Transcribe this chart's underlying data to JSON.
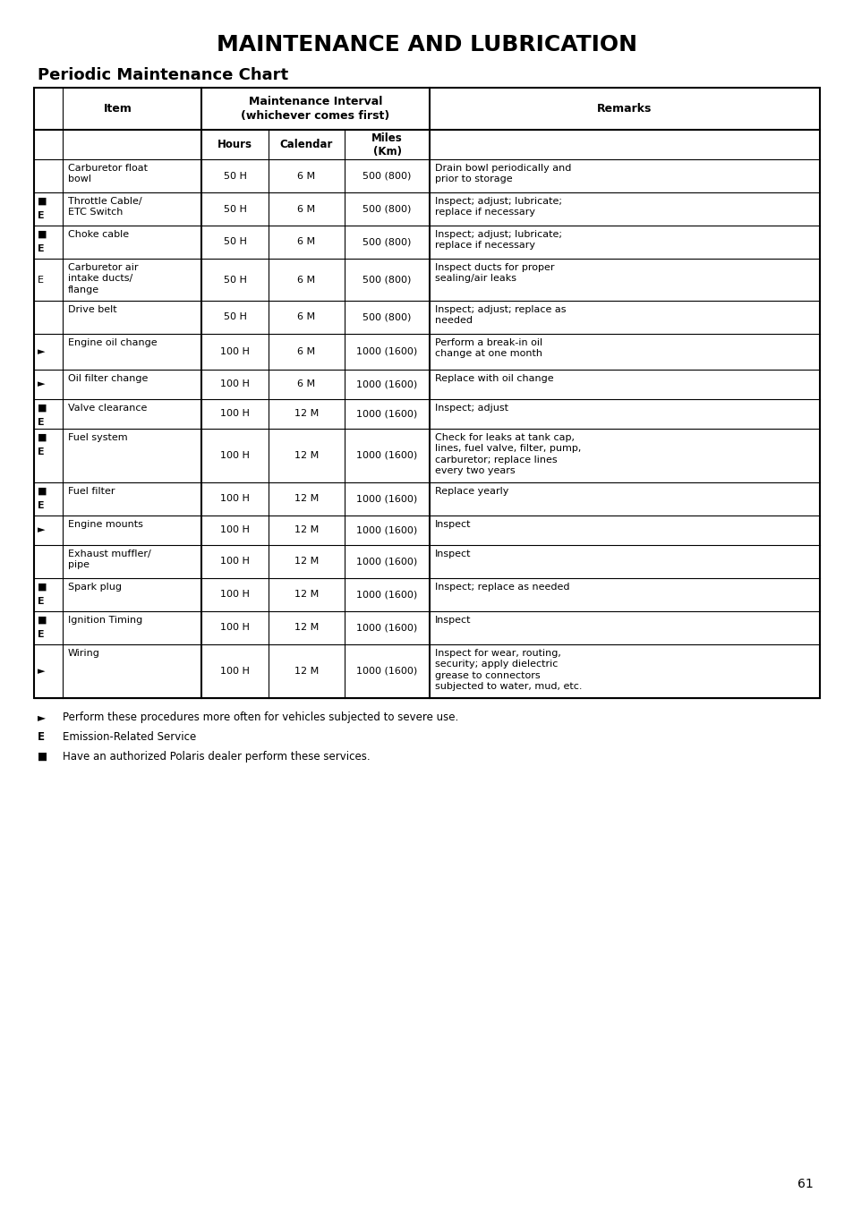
{
  "title": "MAINTENANCE AND LUBRICATION",
  "subtitle": "Periodic Maintenance Chart",
  "page_number": "61",
  "rows": [
    {
      "symbol": "",
      "symbol2": "",
      "item": "Carburetor float\nbowl",
      "hours": "50 H",
      "calendar": "6 M",
      "miles": "500 (800)",
      "remarks": "Drain bowl periodically and\nprior to storage"
    },
    {
      "symbol": "■",
      "symbol2": "E",
      "item": "Throttle Cable/\nETC Switch",
      "hours": "50 H",
      "calendar": "6 M",
      "miles": "500 (800)",
      "remarks": "Inspect; adjust; lubricate;\nreplace if necessary"
    },
    {
      "symbol": "■",
      "symbol2": "E",
      "item": "Choke cable",
      "hours": "50 H",
      "calendar": "6 M",
      "miles": "500 (800)",
      "remarks": "Inspect; adjust; lubricate;\nreplace if necessary"
    },
    {
      "symbol": "E",
      "symbol2": "",
      "item": "Carburetor air\nintake ducts/\nflange",
      "hours": "50 H",
      "calendar": "6 M",
      "miles": "500 (800)",
      "remarks": "Inspect ducts for proper\nsealing/air leaks"
    },
    {
      "symbol": "",
      "symbol2": "",
      "item": "Drive belt",
      "hours": "50 H",
      "calendar": "6 M",
      "miles": "500 (800)",
      "remarks": "Inspect; adjust; replace as\nneeded"
    },
    {
      "symbol": "►",
      "symbol2": "",
      "item": "Engine oil change",
      "hours": "100 H",
      "calendar": "6 M",
      "miles": "1000 (1600)",
      "remarks": "Perform a break-in oil\nchange at one month"
    },
    {
      "symbol": "►",
      "symbol2": "",
      "item": "Oil filter change",
      "hours": "100 H",
      "calendar": "6 M",
      "miles": "1000 (1600)",
      "remarks": "Replace with oil change"
    },
    {
      "symbol": "■",
      "symbol2": "E",
      "item": "Valve clearance",
      "hours": "100 H",
      "calendar": "12 M",
      "miles": "1000 (1600)",
      "remarks": "Inspect; adjust"
    },
    {
      "symbol": "■",
      "symbol2": "E",
      "item": "Fuel system",
      "hours": "100 H",
      "calendar": "12 M",
      "miles": "1000 (1600)",
      "remarks": "Check for leaks at tank cap,\nlines, fuel valve, filter, pump,\ncarburetor; replace lines\nevery two years"
    },
    {
      "symbol": "■",
      "symbol2": "E",
      "item": "Fuel filter",
      "hours": "100 H",
      "calendar": "12 M",
      "miles": "1000 (1600)",
      "remarks": "Replace yearly"
    },
    {
      "symbol": "►",
      "symbol2": "",
      "item": "Engine mounts",
      "hours": "100 H",
      "calendar": "12 M",
      "miles": "1000 (1600)",
      "remarks": "Inspect"
    },
    {
      "symbol": "",
      "symbol2": "",
      "item": "Exhaust muffler/\npipe",
      "hours": "100 H",
      "calendar": "12 M",
      "miles": "1000 (1600)",
      "remarks": "Inspect"
    },
    {
      "symbol": "■",
      "symbol2": "E",
      "item": "Spark plug",
      "hours": "100 H",
      "calendar": "12 M",
      "miles": "1000 (1600)",
      "remarks": "Inspect; replace as needed"
    },
    {
      "symbol": "■",
      "symbol2": "E",
      "item": "Ignition Timing",
      "hours": "100 H",
      "calendar": "12 M",
      "miles": "1000 (1600)",
      "remarks": "Inspect"
    },
    {
      "symbol": "►",
      "symbol2": "",
      "item": "Wiring",
      "hours": "100 H",
      "calendar": "12 M",
      "miles": "1000 (1600)",
      "remarks": "Inspect for wear, routing,\nsecurity; apply dielectric\ngrease to connectors\nsubjected to water, mud, etc."
    }
  ],
  "footnotes": [
    [
      "►",
      "Perform these procedures more often for vehicles subjected to severe use."
    ],
    [
      "E",
      "Emission-Related Service"
    ],
    [
      "■",
      "Have an authorized Polaris dealer perform these services."
    ]
  ],
  "background_color": "#ffffff",
  "text_color": "#000000"
}
